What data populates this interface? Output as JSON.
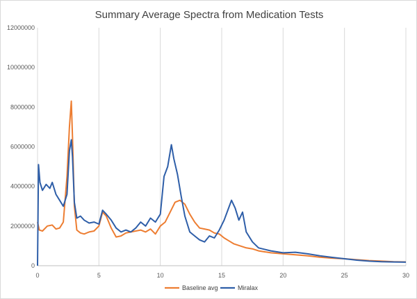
{
  "chart_data": {
    "type": "line",
    "title": "Summary Average Spectra from Medication Tests",
    "xlabel": "",
    "ylabel": "",
    "xlim": [
      0,
      30
    ],
    "ylim": [
      0,
      12000000
    ],
    "x_ticks": [
      0,
      5,
      10,
      15,
      20,
      25,
      30
    ],
    "y_ticks": [
      0,
      2000000,
      4000000,
      6000000,
      8000000,
      10000000,
      12000000
    ],
    "x_tick_labels": [
      "0",
      "5",
      "10",
      "15",
      "20",
      "25",
      "30"
    ],
    "y_tick_labels": [
      "0",
      "2000000",
      "4000000",
      "6000000",
      "8000000",
      "10000000",
      "12000000"
    ],
    "grid": "vertical major gridlines",
    "legend_position": "bottom",
    "series": [
      {
        "name": "Baseline avg",
        "color": "#ED7D31",
        "x": [
          0,
          0.15,
          0.4,
          0.8,
          1.2,
          1.5,
          1.8,
          2.1,
          2.4,
          2.6,
          2.75,
          2.85,
          3.0,
          3.2,
          3.5,
          3.8,
          4.2,
          4.6,
          5.0,
          5.3,
          5.6,
          6.0,
          6.4,
          6.8,
          7.2,
          7.6,
          8.0,
          8.4,
          8.8,
          9.2,
          9.6,
          10.0,
          10.4,
          10.8,
          11.2,
          11.6,
          12.0,
          12.4,
          12.8,
          13.2,
          13.6,
          14.0,
          14.4,
          14.8,
          15.2,
          15.6,
          16.0,
          16.5,
          17.0,
          17.5,
          18.0,
          19.0,
          20.0,
          21.0,
          22.0,
          23.0,
          24.0,
          25.0,
          26.0,
          27.0,
          28.0,
          29.0,
          30.0
        ],
        "values": [
          2200000,
          1800000,
          1750000,
          2000000,
          2050000,
          1850000,
          1900000,
          2200000,
          4500000,
          7000000,
          8300000,
          6500000,
          3000000,
          1800000,
          1650000,
          1600000,
          1700000,
          1750000,
          2000000,
          2700000,
          2500000,
          1900000,
          1450000,
          1500000,
          1650000,
          1700000,
          1750000,
          1800000,
          1700000,
          1850000,
          1600000,
          2000000,
          2200000,
          2700000,
          3200000,
          3300000,
          3100000,
          2600000,
          2200000,
          1900000,
          1850000,
          1800000,
          1650000,
          1600000,
          1400000,
          1250000,
          1100000,
          1000000,
          900000,
          850000,
          750000,
          650000,
          600000,
          550000,
          500000,
          430000,
          380000,
          350000,
          300000,
          260000,
          230000,
          200000,
          190000
        ]
      },
      {
        "name": "Miralax",
        "color": "#2E5EA8",
        "x": [
          0,
          0.08,
          0.2,
          0.4,
          0.7,
          1.0,
          1.2,
          1.5,
          1.8,
          2.1,
          2.4,
          2.6,
          2.75,
          2.85,
          3.0,
          3.2,
          3.5,
          3.8,
          4.2,
          4.6,
          5.0,
          5.3,
          5.6,
          6.0,
          6.4,
          6.8,
          7.2,
          7.6,
          8.0,
          8.4,
          8.8,
          9.2,
          9.6,
          10.0,
          10.3,
          10.6,
          10.9,
          11.1,
          11.4,
          11.7,
          12.0,
          12.4,
          12.8,
          13.2,
          13.6,
          14.0,
          14.4,
          14.8,
          15.2,
          15.5,
          15.8,
          16.1,
          16.4,
          16.7,
          17.0,
          17.5,
          18.0,
          19.0,
          20.0,
          21.0,
          22.0,
          23.0,
          24.0,
          25.0,
          26.0,
          27.0,
          28.0,
          29.0,
          30.0
        ],
        "values": [
          0,
          5100000,
          4200000,
          3800000,
          4100000,
          3900000,
          4200000,
          3600000,
          3300000,
          3000000,
          3600000,
          5800000,
          6350000,
          5500000,
          3200000,
          2400000,
          2500000,
          2300000,
          2150000,
          2200000,
          2100000,
          2800000,
          2600000,
          2300000,
          1900000,
          1700000,
          1800000,
          1700000,
          1900000,
          2200000,
          2000000,
          2400000,
          2200000,
          2600000,
          4500000,
          5000000,
          6100000,
          5400000,
          4600000,
          3500000,
          2500000,
          1700000,
          1500000,
          1300000,
          1200000,
          1500000,
          1400000,
          1800000,
          2300000,
          2800000,
          3300000,
          2900000,
          2300000,
          2700000,
          1700000,
          1200000,
          900000,
          750000,
          650000,
          680000,
          600000,
          500000,
          420000,
          350000,
          280000,
          230000,
          200000,
          190000,
          180000
        ]
      }
    ]
  }
}
